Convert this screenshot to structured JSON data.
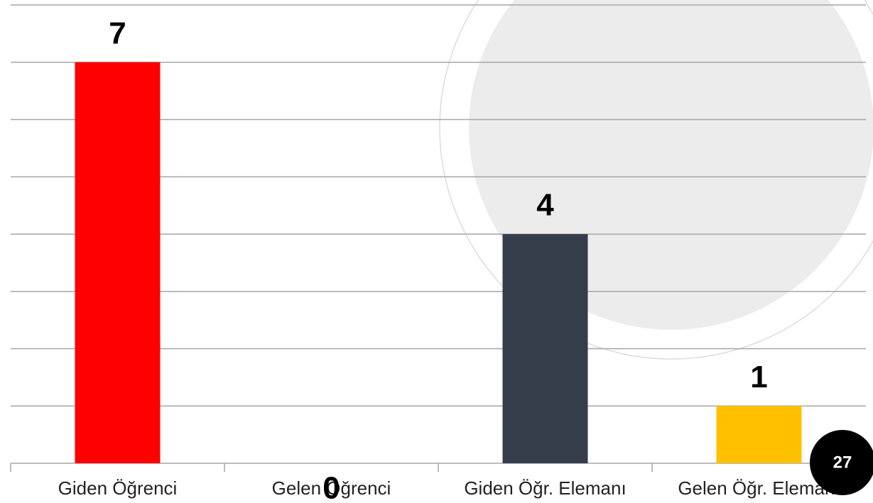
{
  "chart_data": {
    "type": "bar",
    "categories": [
      "Giden Öğrenci",
      "Gelen Öğrenci",
      "Giden Öğr. Elemanı",
      "Gelen Öğr. Elemanı"
    ],
    "values": [
      7,
      0,
      4,
      1
    ],
    "colors": [
      "#ff0000",
      null,
      "#363d4a",
      "#ffc000"
    ],
    "ylim": [
      0,
      8
    ],
    "yticks": [
      0,
      1,
      2,
      3,
      4,
      5,
      6,
      7,
      8
    ],
    "grid": true
  },
  "page_number": "27"
}
